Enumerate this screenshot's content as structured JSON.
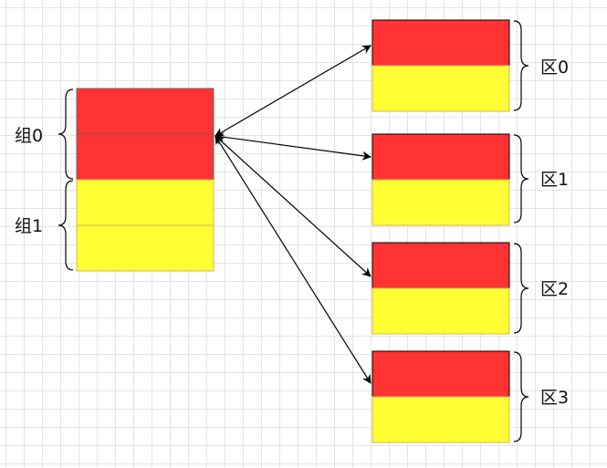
{
  "colors": {
    "red": "#ff3333",
    "yellow": "#ffff33",
    "red_border": "#666666",
    "yellow_border": "#d6b656",
    "line": "#000000"
  },
  "groups": [
    {
      "label": "组0",
      "color": "red"
    },
    {
      "label": "组1",
      "color": "yellow"
    }
  ],
  "regions": [
    {
      "label": "区0"
    },
    {
      "label": "区1"
    },
    {
      "label": "区2"
    },
    {
      "label": "区3"
    }
  ]
}
